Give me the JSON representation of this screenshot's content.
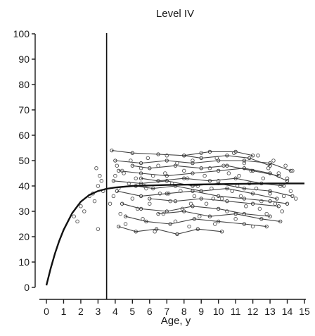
{
  "chart_data": {
    "type": "scatter",
    "title": "Level IV",
    "xlabel": "Age, y",
    "ylabel": "",
    "xlim": [
      0,
      15
    ],
    "ylim": [
      0,
      100
    ],
    "x_ticks": [
      "0",
      "1",
      "2",
      "3",
      "4",
      "5",
      "6",
      "7",
      "8",
      "9",
      "10",
      "11",
      "12",
      "13",
      "14",
      "15"
    ],
    "y_ticks": [
      "0",
      "10",
      "20",
      "30",
      "40",
      "50",
      "60",
      "70",
      "80",
      "90",
      "100"
    ],
    "grid": false,
    "legend": "none",
    "reference_line_x": 3.5,
    "series": [
      {
        "kind": "fitted_curve",
        "x": [
          0,
          0.25,
          0.5,
          0.75,
          1,
          1.5,
          2,
          2.5,
          3,
          3.5,
          4,
          5,
          6,
          7,
          8,
          9,
          10,
          11,
          12,
          13,
          14,
          15
        ],
        "y": [
          0.8,
          7.5,
          13.4,
          18.4,
          22.7,
          29.3,
          33.8,
          36.5,
          38.0,
          38.9,
          39.4,
          40.0,
          40.2,
          40.4,
          40.5,
          40.6,
          40.7,
          40.8,
          40.9,
          41.0,
          41.0,
          41.0
        ]
      },
      {
        "kind": "observations",
        "points": [
          [
            1.6,
            28
          ],
          [
            1.8,
            26
          ],
          [
            2.0,
            32
          ],
          [
            2.2,
            30
          ],
          [
            2.5,
            36
          ],
          [
            2.7,
            37
          ],
          [
            2.8,
            34
          ],
          [
            3.0,
            40
          ],
          [
            3.1,
            44
          ],
          [
            3.3,
            38
          ],
          [
            3.0,
            23
          ],
          [
            3.2,
            42
          ],
          [
            2.9,
            47
          ],
          [
            3.7,
            33
          ],
          [
            3.9,
            36
          ],
          [
            4.0,
            44
          ],
          [
            4.1,
            48
          ],
          [
            4.2,
            39
          ],
          [
            4.3,
            29
          ],
          [
            4.5,
            45
          ],
          [
            4.6,
            25
          ],
          [
            4.8,
            41
          ],
          [
            4.9,
            50
          ],
          [
            5.0,
            35
          ],
          [
            5.2,
            43
          ],
          [
            5.3,
            31
          ],
          [
            5.5,
            47
          ],
          [
            5.6,
            27
          ],
          [
            5.8,
            39
          ],
          [
            5.9,
            51
          ],
          [
            6.0,
            33
          ],
          [
            6.2,
            44
          ],
          [
            6.3,
            22
          ],
          [
            6.5,
            48
          ],
          [
            6.6,
            37
          ],
          [
            6.8,
            29
          ],
          [
            6.9,
            45
          ],
          [
            7.0,
            52
          ],
          [
            7.2,
            34
          ],
          [
            7.3,
            41
          ],
          [
            7.5,
            26
          ],
          [
            7.6,
            49
          ],
          [
            7.8,
            38
          ],
          [
            7.9,
            31
          ],
          [
            8.0,
            46
          ],
          [
            8.2,
            43
          ],
          [
            8.3,
            24
          ],
          [
            8.5,
            50
          ],
          [
            8.6,
            36
          ],
          [
            8.8,
            40
          ],
          [
            8.9,
            28
          ],
          [
            9.0,
            53
          ],
          [
            9.2,
            44
          ],
          [
            9.3,
            33
          ],
          [
            9.5,
            47
          ],
          [
            9.6,
            39
          ],
          [
            9.8,
            25
          ],
          [
            9.9,
            51
          ],
          [
            10.0,
            42
          ],
          [
            10.2,
            35
          ],
          [
            10.3,
            48
          ],
          [
            10.5,
            30
          ],
          [
            10.6,
            45
          ],
          [
            10.8,
            38
          ],
          [
            10.9,
            53
          ],
          [
            11.0,
            27
          ],
          [
            11.2,
            44
          ],
          [
            11.3,
            36
          ],
          [
            11.5,
            49
          ],
          [
            11.6,
            32
          ],
          [
            11.8,
            41
          ],
          [
            11.9,
            46
          ],
          [
            12.0,
            24
          ],
          [
            12.2,
            39
          ],
          [
            12.3,
            52
          ],
          [
            12.5,
            34
          ],
          [
            12.6,
            43
          ],
          [
            12.8,
            29
          ],
          [
            12.9,
            47
          ],
          [
            13.0,
            37
          ],
          [
            13.2,
            50
          ],
          [
            13.3,
            33
          ],
          [
            13.5,
            45
          ],
          [
            13.6,
            40
          ],
          [
            13.8,
            36
          ],
          [
            13.9,
            48
          ],
          [
            14.0,
            43
          ],
          [
            14.2,
            38
          ],
          [
            14.3,
            46
          ],
          [
            14.5,
            35
          ],
          [
            4.4,
            46
          ],
          [
            5.7,
            40
          ],
          [
            7.1,
            37
          ],
          [
            8.4,
            33
          ],
          [
            9.7,
            35
          ],
          [
            11.1,
            40
          ],
          [
            12.4,
            31
          ],
          [
            13.7,
            30
          ]
        ]
      },
      {
        "kind": "individual_tracks",
        "lines": [
          [
            [
              3.8,
              54
            ],
            [
              5.0,
              53
            ],
            [
              6.5,
              52.5
            ],
            [
              8.0,
              52
            ],
            [
              9.5,
              53.5
            ],
            [
              11.0,
              53.5
            ],
            [
              12.0,
              52
            ]
          ],
          [
            [
              4.0,
              50
            ],
            [
              5.5,
              49
            ],
            [
              7.0,
              50
            ],
            [
              8.5,
              49
            ],
            [
              10.0,
              50
            ],
            [
              11.5,
              50
            ],
            [
              13.0,
              49
            ],
            [
              14.2,
              46
            ]
          ],
          [
            [
              4.2,
              46
            ],
            [
              5.5,
              45
            ],
            [
              7.0,
              44
            ],
            [
              8.5,
              45
            ],
            [
              10.0,
              46
            ],
            [
              11.5,
              47
            ],
            [
              13.0,
              45
            ],
            [
              14.0,
              42
            ]
          ],
          [
            [
              3.9,
              42
            ],
            [
              5.5,
              41
            ],
            [
              7.0,
              42
            ],
            [
              8.5,
              40
            ],
            [
              10.0,
              41
            ],
            [
              11.5,
              39
            ],
            [
              13.0,
              38
            ],
            [
              14.3,
              36
            ]
          ],
          [
            [
              4.1,
              38
            ],
            [
              5.5,
              36
            ],
            [
              7.0,
              37
            ],
            [
              8.5,
              38
            ],
            [
              10.0,
              36
            ],
            [
              11.5,
              35
            ],
            [
              13.0,
              34
            ],
            [
              14.0,
              33
            ]
          ],
          [
            [
              4.4,
              33
            ],
            [
              5.5,
              31
            ],
            [
              7.0,
              30
            ],
            [
              8.5,
              32
            ],
            [
              10.0,
              31
            ],
            [
              11.5,
              29
            ],
            [
              13.0,
              28
            ]
          ],
          [
            [
              4.6,
              28
            ],
            [
              5.8,
              26
            ],
            [
              7.2,
              25
            ],
            [
              8.6,
              27
            ],
            [
              10.0,
              26
            ],
            [
              11.5,
              25
            ],
            [
              12.8,
              24
            ]
          ],
          [
            [
              4.2,
              24
            ],
            [
              5.2,
              22
            ],
            [
              6.4,
              23
            ],
            [
              7.6,
              21
            ],
            [
              8.8,
              23
            ],
            [
              10.2,
              22
            ]
          ],
          [
            [
              5.0,
              48
            ],
            [
              6.0,
              47
            ],
            [
              7.5,
              48
            ],
            [
              9.0,
              47
            ],
            [
              10.5,
              48
            ],
            [
              12.0,
              46
            ],
            [
              13.5,
              44
            ]
          ],
          [
            [
              5.5,
              43
            ],
            [
              6.5,
              42
            ],
            [
              8.0,
              43
            ],
            [
              9.5,
              42
            ],
            [
              11.0,
              43
            ],
            [
              12.5,
              41
            ],
            [
              13.8,
              40
            ]
          ],
          [
            [
              6.0,
              35
            ],
            [
              7.5,
              34
            ],
            [
              9.0,
              35
            ],
            [
              10.5,
              34
            ],
            [
              12.0,
              33
            ],
            [
              13.5,
              32
            ]
          ],
          [
            [
              6.5,
              29
            ],
            [
              8.0,
              30
            ],
            [
              9.5,
              28
            ],
            [
              11.0,
              29
            ],
            [
              12.5,
              27
            ],
            [
              13.6,
              26
            ]
          ],
          [
            [
              8.0,
              52
            ],
            [
              9.0,
              51
            ],
            [
              10.5,
              52
            ],
            [
              11.8,
              51
            ],
            [
              13.0,
              48
            ]
          ],
          [
            [
              5.2,
              40
            ],
            [
              6.2,
              39
            ],
            [
              7.5,
              40
            ],
            [
              9.0,
              38
            ],
            [
              10.5,
              39
            ],
            [
              12.0,
              37
            ],
            [
              13.4,
              35
            ]
          ]
        ]
      }
    ]
  }
}
